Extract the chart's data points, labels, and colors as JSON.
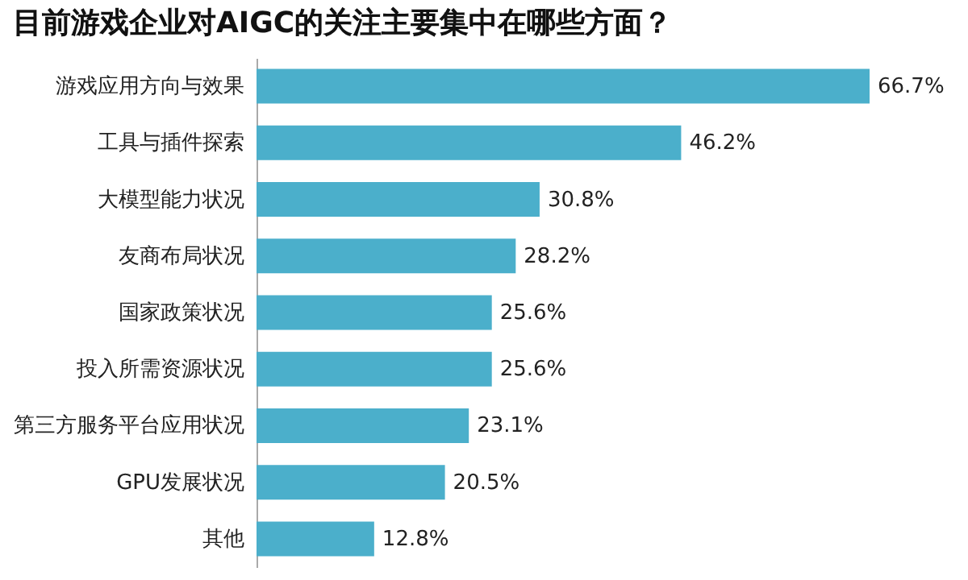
{
  "chart_data": {
    "type": "bar",
    "orientation": "horizontal",
    "title": "目前游戏企业对AIGC的关注主要集中在哪些方面？",
    "categories": [
      "游戏应用方向与效果",
      "工具与插件探索",
      "大模型能力状况",
      "友商布局状况",
      "国家政策状况",
      "投入所需资源状况",
      "第三方服务平台应用状况",
      "GPU发展状况",
      "其他"
    ],
    "values": [
      66.7,
      46.2,
      30.8,
      28.2,
      25.6,
      25.6,
      23.1,
      20.5,
      12.8
    ],
    "value_labels": [
      "66.7%",
      "46.2%",
      "30.8%",
      "28.2%",
      "25.6%",
      "25.6%",
      "23.1%",
      "20.5%",
      "12.8%"
    ],
    "color": "#4bafcb"
  }
}
